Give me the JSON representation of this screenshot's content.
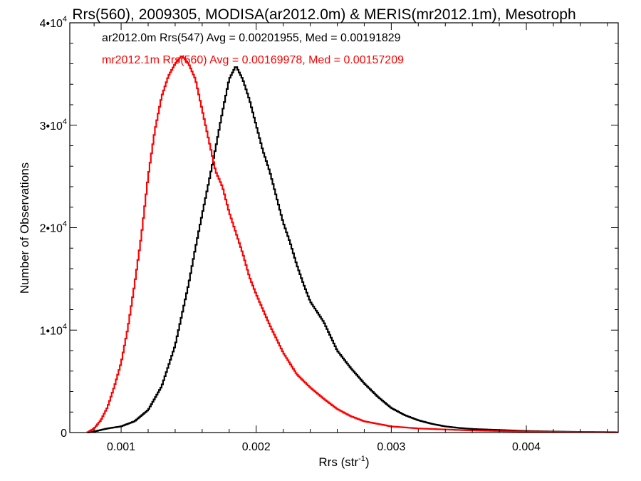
{
  "chart_data": {
    "type": "line",
    "title": "Rrs(560), 2009305, MODISA(ar2012.0m) & MERIS(mr2012.1m), Mesotroph",
    "xlabel": "Rrs (str",
    "xlabel_sup": "-1",
    "xlabel_close": ")",
    "ylabel": "Number of Observations",
    "xlim": [
      0.00062,
      0.00468
    ],
    "ylim": [
      0,
      40000
    ],
    "x_ticks": [
      {
        "value": 0.001,
        "label": "0.001"
      },
      {
        "value": 0.002,
        "label": "0.002"
      },
      {
        "value": 0.003,
        "label": "0.003"
      },
      {
        "value": 0.004,
        "label": "0.004"
      }
    ],
    "y_ticks": [
      {
        "value": 0,
        "label": "0",
        "sup": ""
      },
      {
        "value": 10000,
        "label": "1•10",
        "sup": "4"
      },
      {
        "value": 20000,
        "label": "2•10",
        "sup": "4"
      },
      {
        "value": 30000,
        "label": "3•10",
        "sup": "4"
      },
      {
        "value": 40000,
        "label": "4•10",
        "sup": "4"
      }
    ],
    "grid": false,
    "legend_position": "top-left",
    "series": [
      {
        "name": "ar2012.0m Rrs(547) Avg = 0.00201955, Med = 0.00191829",
        "color": "#000000",
        "points": [
          [
            0.00075,
            0
          ],
          [
            0.0008,
            100
          ],
          [
            0.0009,
            400
          ],
          [
            0.001,
            600
          ],
          [
            0.0011,
            1100
          ],
          [
            0.0012,
            2200
          ],
          [
            0.0013,
            4500
          ],
          [
            0.0014,
            8500
          ],
          [
            0.0015,
            14500
          ],
          [
            0.00155,
            18000
          ],
          [
            0.0016,
            21300
          ],
          [
            0.00165,
            24500
          ],
          [
            0.0017,
            27800
          ],
          [
            0.00175,
            31300
          ],
          [
            0.0018,
            34500
          ],
          [
            0.00185,
            35800
          ],
          [
            0.0019,
            34500
          ],
          [
            0.00195,
            32500
          ],
          [
            0.002,
            30000
          ],
          [
            0.00205,
            27500
          ],
          [
            0.0021,
            25500
          ],
          [
            0.00215,
            23000
          ],
          [
            0.0022,
            20500
          ],
          [
            0.00225,
            18600
          ],
          [
            0.0023,
            16400
          ],
          [
            0.00235,
            14500
          ],
          [
            0.0024,
            12800
          ],
          [
            0.00245,
            11800
          ],
          [
            0.0025,
            10800
          ],
          [
            0.00255,
            9400
          ],
          [
            0.0026,
            8000
          ],
          [
            0.0027,
            6300
          ],
          [
            0.0028,
            4800
          ],
          [
            0.0029,
            3500
          ],
          [
            0.003,
            2400
          ],
          [
            0.0031,
            1700
          ],
          [
            0.0032,
            1200
          ],
          [
            0.0033,
            850
          ],
          [
            0.0034,
            600
          ],
          [
            0.0035,
            450
          ],
          [
            0.0036,
            350
          ],
          [
            0.0038,
            250
          ],
          [
            0.004,
            150
          ],
          [
            0.0042,
            100
          ],
          [
            0.0044,
            60
          ],
          [
            0.00468,
            30
          ]
        ]
      },
      {
        "name": "mr2012.1m Rrs(560) Avg = 0.00169978, Med = 0.00157209",
        "color": "#ff0000",
        "points": [
          [
            0.00075,
            0
          ],
          [
            0.0008,
            400
          ],
          [
            0.00085,
            1200
          ],
          [
            0.0009,
            2500
          ],
          [
            0.00095,
            4500
          ],
          [
            0.001,
            6800
          ],
          [
            0.00105,
            10200
          ],
          [
            0.0011,
            14500
          ],
          [
            0.00115,
            19200
          ],
          [
            0.0012,
            25000
          ],
          [
            0.00125,
            29500
          ],
          [
            0.0013,
            32800
          ],
          [
            0.00135,
            34800
          ],
          [
            0.0014,
            36000
          ],
          [
            0.00145,
            36800
          ],
          [
            0.0015,
            36000
          ],
          [
            0.00155,
            34500
          ],
          [
            0.0016,
            31500
          ],
          [
            0.00165,
            28500
          ],
          [
            0.0017,
            25500
          ],
          [
            0.00175,
            24000
          ],
          [
            0.0018,
            21500
          ],
          [
            0.00185,
            19500
          ],
          [
            0.0019,
            17500
          ],
          [
            0.00195,
            15200
          ],
          [
            0.002,
            13500
          ],
          [
            0.0021,
            10500
          ],
          [
            0.0022,
            7800
          ],
          [
            0.0023,
            5700
          ],
          [
            0.0024,
            4400
          ],
          [
            0.0025,
            3300
          ],
          [
            0.0026,
            2300
          ],
          [
            0.0027,
            1600
          ],
          [
            0.0028,
            1100
          ],
          [
            0.0029,
            850
          ],
          [
            0.003,
            600
          ],
          [
            0.0032,
            400
          ],
          [
            0.0034,
            300
          ],
          [
            0.0036,
            200
          ],
          [
            0.0038,
            150
          ],
          [
            0.004,
            100
          ],
          [
            0.0043,
            60
          ],
          [
            0.00468,
            30
          ]
        ]
      }
    ]
  }
}
